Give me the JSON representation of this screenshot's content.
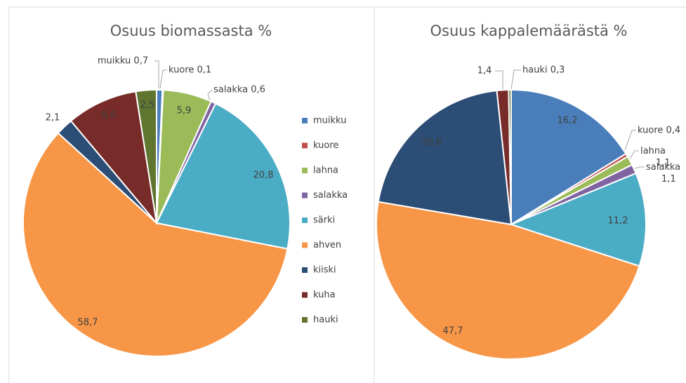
{
  "chart_data": [
    {
      "type": "pie",
      "title": "Osuus biomassasta %",
      "categories": [
        "muikku",
        "kuore",
        "lahna",
        "salakka",
        "särki",
        "ahven",
        "kiiski",
        "kuha",
        "hauki"
      ],
      "values": [
        0.7,
        0.1,
        5.9,
        0.6,
        20.8,
        58.7,
        2.1,
        8.6,
        2.5
      ],
      "value_labels": [
        "muikku 0,7",
        "kuore 0,1",
        "5,9",
        "salakka 0,6",
        "20,8",
        "58,7",
        "2,1",
        "8,6",
        "2,5"
      ],
      "colors": [
        "#4a7ebb",
        "#c0504d",
        "#9bbb59",
        "#8064a2",
        "#4bacc6",
        "#f79646",
        "#2c4d75",
        "#772c2a",
        "#5f7530"
      ],
      "legend": "right"
    },
    {
      "type": "pie",
      "title": "Osuus kappalemäärästä %",
      "categories": [
        "muikku",
        "kuore",
        "lahna",
        "salakka",
        "särki",
        "ahven",
        "kiiski",
        "kuha",
        "hauki"
      ],
      "values": [
        16.2,
        0.4,
        1.1,
        1.1,
        11.2,
        47.7,
        20.6,
        1.4,
        0.3
      ],
      "value_labels": [
        "16,2",
        "kuore 0,4",
        "lahna 1,1",
        "salakka 1,1",
        "11,2",
        "47,7",
        "20,6",
        "1,4",
        "hauki 0,3"
      ],
      "colors": [
        "#4a7ebb",
        "#c0504d",
        "#9bbb59",
        "#8064a2",
        "#4bacc6",
        "#f79646",
        "#2c4d75",
        "#772c2a",
        "#5f7530"
      ]
    }
  ]
}
